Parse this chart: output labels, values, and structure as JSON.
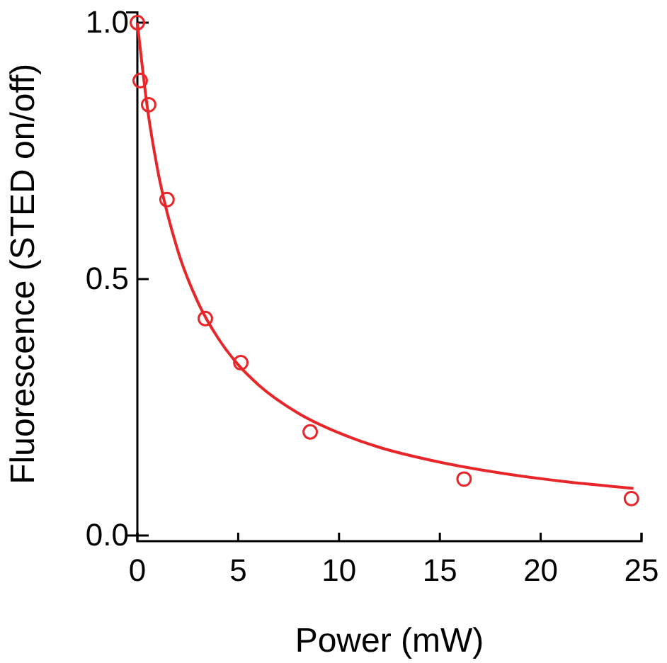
{
  "chart_data": {
    "type": "scatter",
    "xlabel": "Power (mW)",
    "ylabel": "Fluorescence (STED on/off)",
    "xlim": [
      0,
      25
    ],
    "ylim": [
      0,
      1.02
    ],
    "xticks": [
      0,
      5,
      10,
      15,
      20,
      25
    ],
    "yticks": [
      {
        "value": 0,
        "label": "0.0"
      },
      {
        "value": 0.5,
        "label": "0.5"
      },
      {
        "value": 1,
        "label": "1.0"
      }
    ],
    "grid": false,
    "series": [
      {
        "color": "#e8262a",
        "marker": "circle",
        "x": [
          0,
          0.14,
          0.56,
          1.47,
          3.37,
          5.13,
          8.57,
          16.2,
          24.5
        ],
        "values": [
          1.0,
          0.887,
          0.84,
          0.655,
          0.423,
          0.337,
          0.202,
          0.11,
          0.072
        ]
      },
      {
        "type": "line",
        "color": "#e8262a",
        "line_style": "solid",
        "x": [
          0,
          0.5,
          1,
          2,
          3,
          4,
          5,
          6,
          8,
          10,
          12,
          15,
          18,
          21,
          24.6
        ],
        "values": [
          1,
          0.833,
          0.714,
          0.556,
          0.455,
          0.385,
          0.333,
          0.294,
          0.238,
          0.2,
          0.172,
          0.143,
          0.122,
          0.106,
          0.092
        ]
      }
    ]
  }
}
